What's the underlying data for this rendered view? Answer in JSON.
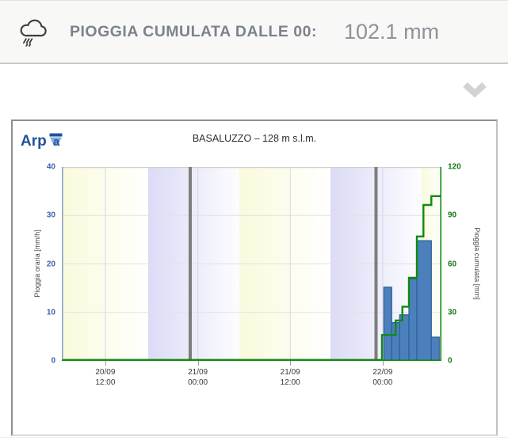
{
  "header": {
    "icon": "rain-cloud-icon",
    "label": "PIOGGIA CUMULATA DALLE 00:",
    "value": "102.1 mm"
  },
  "collapse": {
    "icon": "chevron-down-icon"
  },
  "panel": {
    "logo_text_main": "Arp",
    "logo_text_a": "a",
    "logo_color": "#23519c",
    "logo_funnel_color": "#7fb2dd"
  },
  "chart_data": {
    "type": "bar+step-line",
    "title": "BASALUZZO – 128 m s.l.m.",
    "left_axis": {
      "label": "Pioggia oraria [mm/h]",
      "min": 0,
      "max": 40,
      "ticks": [
        0,
        10,
        20,
        30,
        40
      ],
      "color": "#3c62ae"
    },
    "right_axis": {
      "label": "Pioggia cumulata [mm]",
      "min": 0,
      "max": 120,
      "ticks": [
        0,
        30,
        60,
        90,
        120
      ],
      "color": "#157a15"
    },
    "x_axis": {
      "ticks": [
        {
          "date": "20/09",
          "time": "12:00",
          "frac": 0.1146
        },
        {
          "date": "21/09",
          "time": "00:00",
          "frac": 0.3582
        },
        {
          "date": "21/09",
          "time": "12:00",
          "frac": 0.6017
        },
        {
          "date": "22/09",
          "time": "00:00",
          "frac": 0.8452
        }
      ]
    },
    "band_colors": {
      "day": "#fafadc",
      "night": "#dbdbf6"
    },
    "day_night_bands": [
      {
        "x0": 0.0,
        "x1": 0.2276,
        "kind": "day"
      },
      {
        "x0": 0.2276,
        "x1": 0.4676,
        "kind": "night"
      },
      {
        "x0": 0.4676,
        "x1": 0.7077,
        "kind": "day"
      },
      {
        "x0": 0.7077,
        "x1": 0.9478,
        "kind": "night"
      },
      {
        "x0": 0.9478,
        "x1": 1.0,
        "kind": "day"
      }
    ],
    "midnight_lines": [
      0.3382,
      0.8278
    ],
    "series": [
      {
        "name": "pioggia_oraria",
        "type": "bar",
        "axis": "left",
        "color": "#4c80bd",
        "border": "#2d5f96",
        "bars": [
          {
            "x0": 0.8482,
            "x1": 0.8691,
            "value": 15.2
          },
          {
            "x0": 0.8691,
            "x1": 0.89,
            "value": 7.9
          },
          {
            "x0": 0.89,
            "x1": 0.9144,
            "value": 9.5
          },
          {
            "x0": 0.9144,
            "x1": 0.9353,
            "value": 16.9
          },
          {
            "x0": 0.9353,
            "x1": 0.9735,
            "value": 24.8
          },
          {
            "x0": 0.9735,
            "x1": 0.9944,
            "value": 4.9
          }
        ]
      },
      {
        "name": "pioggia_cumulata",
        "type": "step-line",
        "axis": "right",
        "color": "#108a10",
        "points": [
          {
            "x": 0.8434,
            "value": 16
          },
          {
            "x": 0.8795,
            "value": 25
          },
          {
            "x": 0.8971,
            "value": 33.5
          },
          {
            "x": 0.9144,
            "value": 51.5
          },
          {
            "x": 0.9353,
            "value": 77
          },
          {
            "x": 0.9527,
            "value": 96.5
          },
          {
            "x": 0.9735,
            "value": 102
          }
        ],
        "final_value": 102
      }
    ]
  }
}
